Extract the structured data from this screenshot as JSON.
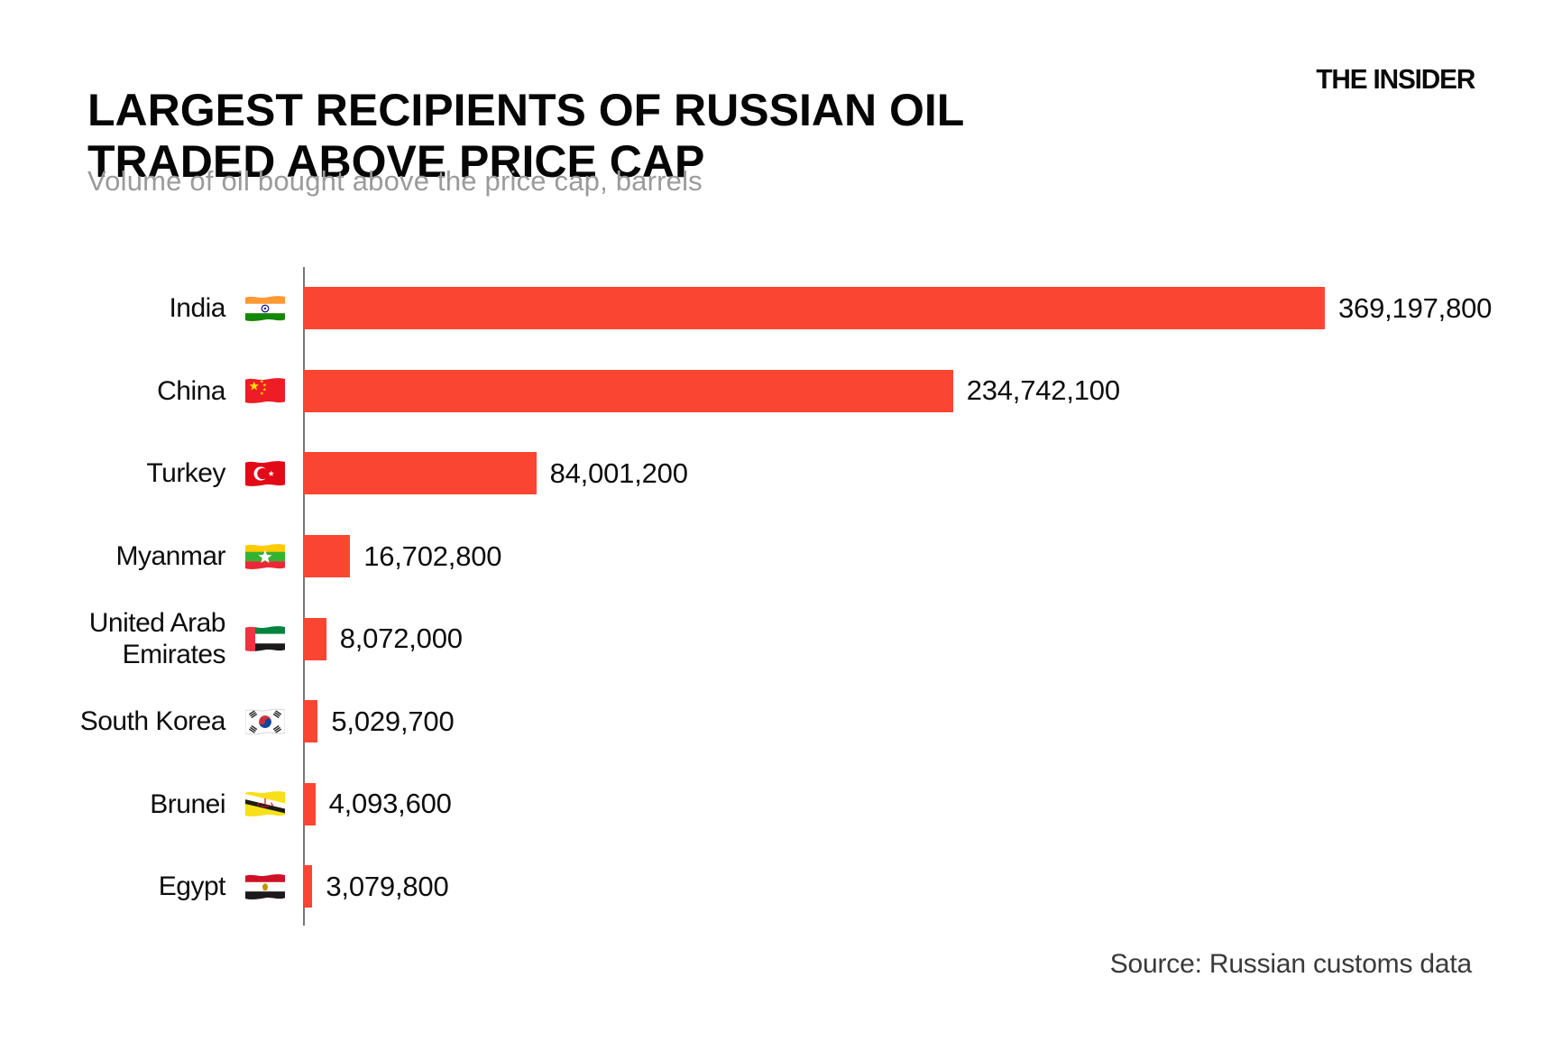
{
  "header": {
    "title_line1": "LARGEST RECIPIENTS OF RUSSIAN OIL",
    "title_line2": "TRADED ABOVE PRICE CAP",
    "subtitle": "Volume of oil bought above the price cap, barrels",
    "logo_text": "THE INSIDER"
  },
  "footer": {
    "source": "Source: Russian customs data"
  },
  "colors": {
    "bar": "#fb4533",
    "title": "#060606",
    "subtitle": "#9b9b9b",
    "axis_line": "#757575",
    "source_text": "#3a3a3a"
  },
  "chart_data": {
    "type": "bar",
    "orientation": "horizontal",
    "title": "LARGEST RECIPIENTS OF RUSSIAN OIL TRADED ABOVE PRICE CAP",
    "subtitle": "Volume of oil bought above the price cap, barrels",
    "unit": "barrels",
    "xlabel": "",
    "ylabel": "",
    "xlim": [
      0,
      369197800
    ],
    "grid": false,
    "legend_position": "none",
    "value_labels_shown": true,
    "bar_color": "#fb4533",
    "categories": [
      "India",
      "China",
      "Turkey",
      "Myanmar",
      "United Arab Emirates",
      "South Korea",
      "Brunei",
      "Egypt"
    ],
    "values": [
      369197800,
      234742100,
      84001200,
      16702800,
      8072000,
      5029700,
      4093600,
      3079800
    ],
    "rows": [
      {
        "label": "India",
        "flag": "india-flag-icon",
        "value": 369197800,
        "value_label": "369,197,800"
      },
      {
        "label": "China",
        "flag": "china-flag-icon",
        "value": 234742100,
        "value_label": "234,742,100"
      },
      {
        "label": "Turkey",
        "flag": "turkey-flag-icon",
        "value": 84001200,
        "value_label": "84,001,200"
      },
      {
        "label": "Myanmar",
        "flag": "myanmar-flag-icon",
        "value": 16702800,
        "value_label": "16,702,800"
      },
      {
        "label": "United Arab Emirates",
        "flag": "uae-flag-icon",
        "value": 8072000,
        "value_label": "8,072,000"
      },
      {
        "label": "South Korea",
        "flag": "south-korea-flag-icon",
        "value": 5029700,
        "value_label": "5,029,700"
      },
      {
        "label": "Brunei",
        "flag": "brunei-flag-icon",
        "value": 4093600,
        "value_label": "4,093,600"
      },
      {
        "label": "Egypt",
        "flag": "egypt-flag-icon",
        "value": 3079800,
        "value_label": "3,079,800"
      }
    ],
    "source": "Source: Russian customs data"
  }
}
